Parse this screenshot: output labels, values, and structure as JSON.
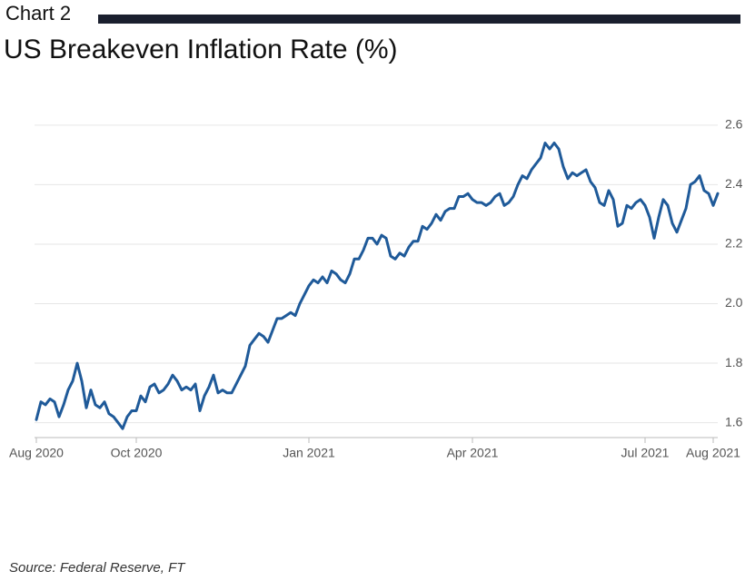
{
  "chart_data": {
    "type": "line",
    "label": "Chart 2",
    "title": "US Breakeven Inflation Rate (%)",
    "source": "Source: Federal Reserve, FT",
    "categories": [
      "Aug 2020",
      null,
      null,
      null,
      null,
      null,
      null,
      null,
      null,
      null,
      null,
      null,
      null,
      null,
      null,
      null,
      null,
      null,
      null,
      null,
      null,
      null,
      "Oct 2020",
      null,
      null,
      null,
      null,
      null,
      null,
      null,
      null,
      null,
      null,
      null,
      null,
      null,
      null,
      null,
      null,
      null,
      null,
      null,
      null,
      null,
      null,
      null,
      null,
      null,
      null,
      null,
      null,
      null,
      null,
      null,
      null,
      null,
      null,
      null,
      null,
      null,
      "Jan 2021",
      null,
      null,
      null,
      null,
      null,
      null,
      null,
      null,
      null,
      null,
      null,
      null,
      null,
      null,
      null,
      null,
      null,
      null,
      null,
      null,
      null,
      null,
      null,
      null,
      null,
      null,
      null,
      null,
      null,
      null,
      null,
      null,
      null,
      null,
      null,
      "Apr 2021",
      null,
      null,
      null,
      null,
      null,
      null,
      null,
      null,
      null,
      null,
      null,
      null,
      null,
      null,
      null,
      null,
      null,
      null,
      null,
      null,
      null,
      null,
      null,
      null,
      null,
      null,
      null,
      null,
      null,
      null,
      null,
      null,
      null,
      null,
      null,
      null,
      null,
      "Jul 2021",
      null,
      null,
      null,
      null,
      null,
      null,
      null,
      null,
      null,
      null,
      null,
      null,
      null,
      null,
      "Aug 2021",
      null
    ],
    "series": [
      {
        "name": "US Breakeven Inflation Rate",
        "color": "#1f5a99",
        "values": [
          1.61,
          1.67,
          1.66,
          1.68,
          1.67,
          1.62,
          1.66,
          1.71,
          1.74,
          1.8,
          1.74,
          1.65,
          1.71,
          1.66,
          1.65,
          1.67,
          1.63,
          1.62,
          1.6,
          1.58,
          1.62,
          1.64,
          1.64,
          1.69,
          1.67,
          1.72,
          1.73,
          1.7,
          1.71,
          1.73,
          1.76,
          1.74,
          1.71,
          1.72,
          1.71,
          1.73,
          1.64,
          1.69,
          1.72,
          1.76,
          1.7,
          1.71,
          1.7,
          1.7,
          1.73,
          1.76,
          1.79,
          1.86,
          1.88,
          1.9,
          1.89,
          1.87,
          1.91,
          1.95,
          1.95,
          1.96,
          1.97,
          1.96,
          2.0,
          2.03,
          2.06,
          2.08,
          2.07,
          2.09,
          2.07,
          2.11,
          2.1,
          2.08,
          2.07,
          2.1,
          2.15,
          2.15,
          2.18,
          2.22,
          2.22,
          2.2,
          2.23,
          2.22,
          2.16,
          2.15,
          2.17,
          2.16,
          2.19,
          2.21,
          2.21,
          2.26,
          2.25,
          2.27,
          2.3,
          2.28,
          2.31,
          2.32,
          2.32,
          2.36,
          2.36,
          2.37,
          2.35,
          2.34,
          2.34,
          2.33,
          2.34,
          2.36,
          2.37,
          2.33,
          2.34,
          2.36,
          2.4,
          2.43,
          2.42,
          2.45,
          2.47,
          2.49,
          2.54,
          2.52,
          2.54,
          2.52,
          2.46,
          2.42,
          2.44,
          2.43,
          2.44,
          2.45,
          2.41,
          2.39,
          2.34,
          2.33,
          2.38,
          2.35,
          2.26,
          2.27,
          2.33,
          2.32,
          2.34,
          2.35,
          2.33,
          2.29,
          2.22,
          2.29,
          2.35,
          2.33,
          2.27,
          2.24,
          2.28,
          2.32,
          2.4,
          2.41,
          2.43,
          2.38,
          2.37,
          2.33,
          2.37
        ]
      }
    ],
    "ylim": [
      1.55,
      2.63
    ],
    "yticks": [
      1.6,
      1.8,
      {
        "value": 2,
        "label": "2.0"
      },
      2.2,
      2.4,
      2.6
    ],
    "grid": true
  }
}
